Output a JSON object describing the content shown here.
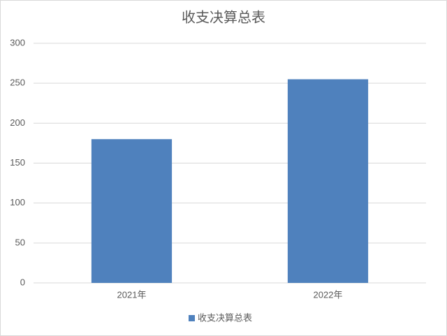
{
  "chart_data": {
    "type": "bar",
    "title": "收支决算总表",
    "categories": [
      "2021年",
      "2022年"
    ],
    "series": [
      {
        "name": "收支决算总表",
        "color": "#4f81bd",
        "values": [
          180,
          255
        ]
      }
    ],
    "ylim": [
      0,
      300
    ],
    "yticks": [
      0,
      50,
      100,
      150,
      200,
      250,
      300
    ],
    "grid": true,
    "legend": "bottom"
  }
}
